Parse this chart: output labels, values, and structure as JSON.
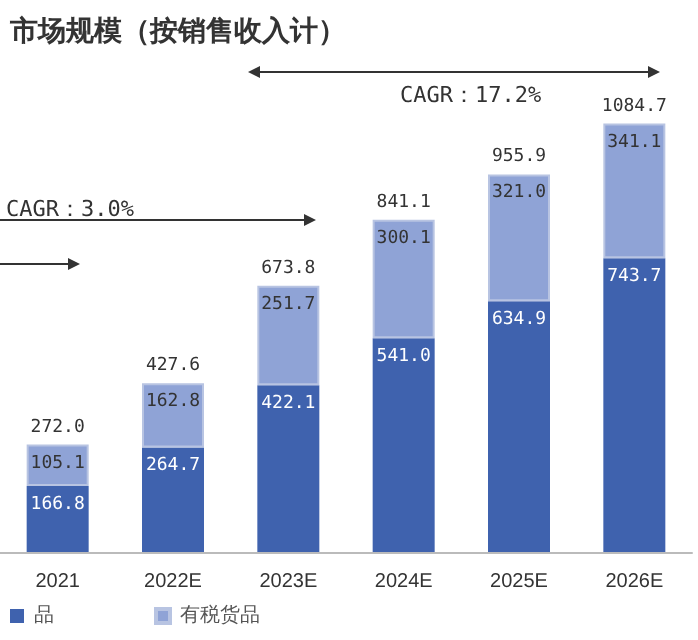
{
  "chart_data": {
    "type": "bar",
    "title": "市场规模（按销售收入计）",
    "categories": [
      "2021",
      "2022E",
      "2023E",
      "2024E",
      "2025E",
      "2026E"
    ],
    "stacked": true,
    "series": [
      {
        "name": "品",
        "color": "#3f62ae",
        "values": [
          166.8,
          264.7,
          422.1,
          541.0,
          634.9,
          743.7
        ],
        "value_labels": [
          "166.8",
          "264.7",
          "422.1",
          "541.0",
          "634.9",
          "743.7"
        ]
      },
      {
        "name": "有税货品",
        "color": "#8fa3d6",
        "values": [
          105.1,
          162.8,
          251.7,
          300.1,
          321.0,
          341.1
        ],
        "value_labels": [
          "105.1",
          "162.8",
          "251.7",
          "300.1",
          "321.0",
          "341.1"
        ]
      }
    ],
    "totals": [
      "272.0",
      "427.6",
      "673.8",
      "841.1",
      "955.9",
      "1084.7"
    ],
    "annotations": [
      "CAGR：17.2%",
      "CAGR：3.0%"
    ],
    "legend": "bottom left"
  }
}
